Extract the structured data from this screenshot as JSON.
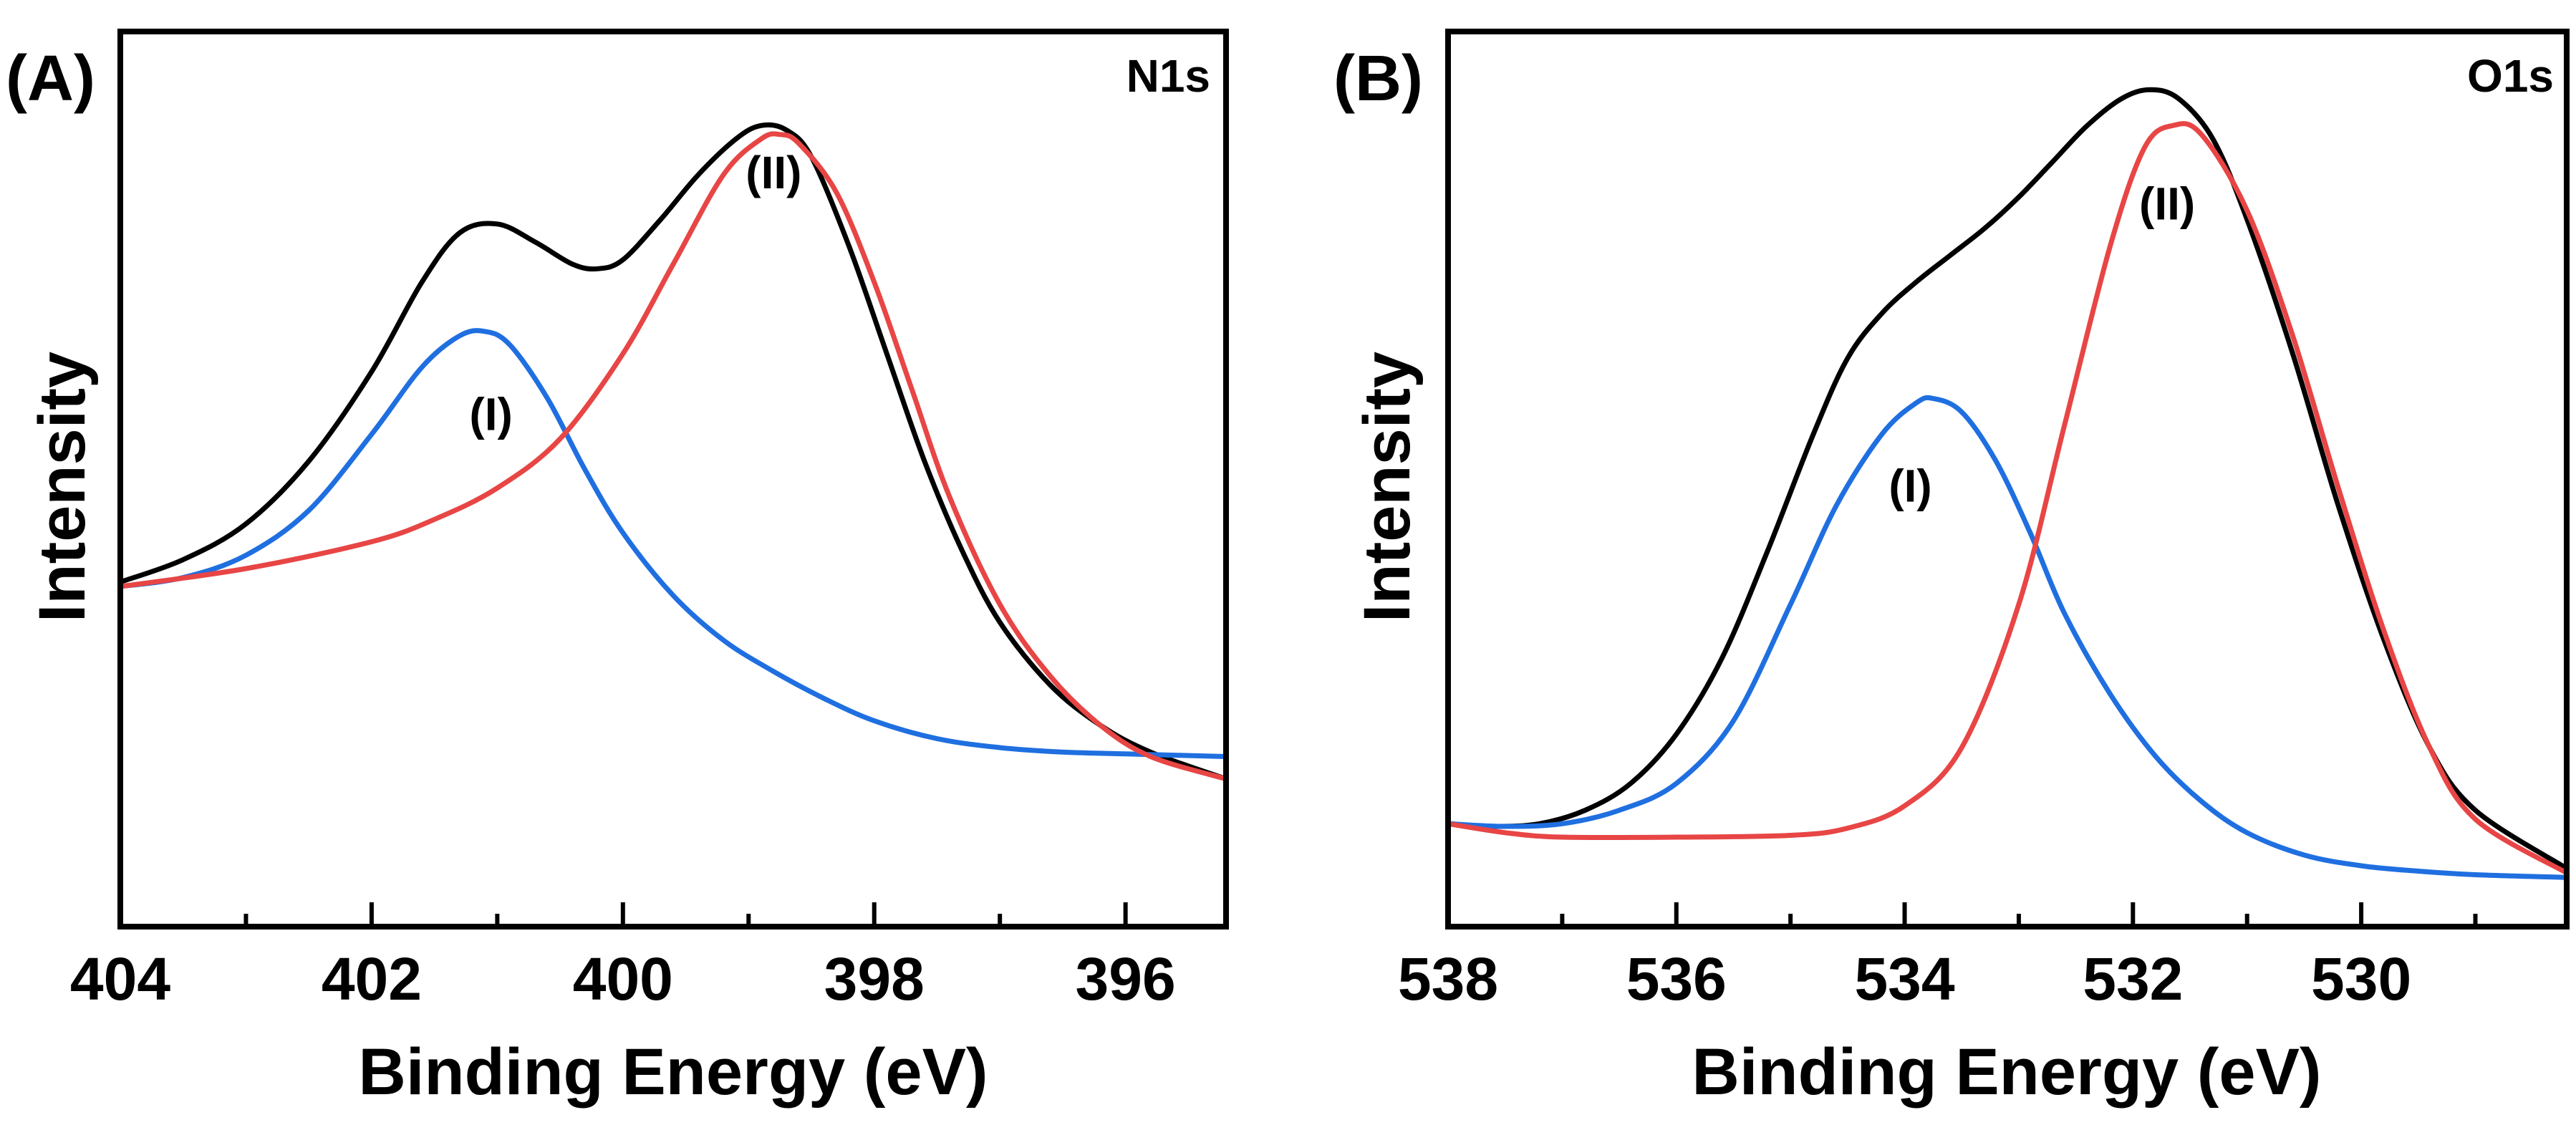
{
  "colors": {
    "envelope": "#000000",
    "peak_I": "#1f6fe0",
    "peak_II": "#e84545"
  },
  "chart_data": [
    {
      "type": "line",
      "panel_label": "(A)",
      "core_level": "N1s",
      "xlabel": "Binding Energy (eV)",
      "ylabel": "Intensity",
      "x_reversed": true,
      "xlim": [
        404.0,
        395.2
      ],
      "ylim": [
        0,
        1.0
      ],
      "x_ticks": [
        404,
        402,
        400,
        398,
        396
      ],
      "x_minor_ticks": [
        403,
        401,
        399,
        397
      ],
      "grid": false,
      "y_tick_labels": false,
      "series": [
        {
          "color": "#000000",
          "x": [
            404.0,
            403.5,
            403.0,
            402.5,
            402.0,
            401.6,
            401.3,
            401.0,
            400.7,
            400.4,
            400.2,
            400.0,
            399.7,
            399.4,
            399.1,
            398.9,
            398.7,
            398.5,
            398.2,
            397.9,
            397.6,
            397.3,
            397.0,
            396.6,
            396.2,
            395.8,
            395.2
          ],
          "y": [
            0.385,
            0.41,
            0.45,
            0.52,
            0.62,
            0.72,
            0.775,
            0.785,
            0.765,
            0.74,
            0.735,
            0.745,
            0.79,
            0.84,
            0.88,
            0.895,
            0.89,
            0.86,
            0.76,
            0.64,
            0.52,
            0.42,
            0.34,
            0.27,
            0.225,
            0.195,
            0.165
          ]
        },
        {
          "color": "#1f6fe0",
          "label": "(I)",
          "label_x": 401.05,
          "label_y": 0.555,
          "x": [
            404.0,
            403.5,
            403.0,
            402.5,
            402.0,
            401.6,
            401.3,
            401.1,
            400.9,
            400.6,
            400.3,
            400.0,
            399.6,
            399.2,
            398.8,
            398.4,
            398.0,
            397.5,
            397.0,
            396.5,
            396.0,
            395.2
          ],
          "y": [
            0.38,
            0.39,
            0.415,
            0.465,
            0.55,
            0.625,
            0.66,
            0.665,
            0.65,
            0.59,
            0.51,
            0.44,
            0.37,
            0.32,
            0.285,
            0.255,
            0.23,
            0.21,
            0.2,
            0.195,
            0.193,
            0.19
          ]
        },
        {
          "color": "#e84545",
          "label": "(II)",
          "label_x": 398.8,
          "label_y": 0.825,
          "x": [
            404.0,
            403.0,
            402.0,
            401.5,
            401.0,
            400.5,
            400.0,
            399.6,
            399.2,
            398.9,
            398.75,
            398.6,
            398.3,
            398.0,
            397.7,
            397.4,
            397.0,
            396.6,
            396.2,
            395.8,
            395.2
          ],
          "y": [
            0.38,
            0.4,
            0.43,
            0.455,
            0.49,
            0.545,
            0.64,
            0.74,
            0.84,
            0.88,
            0.885,
            0.875,
            0.82,
            0.72,
            0.6,
            0.48,
            0.36,
            0.28,
            0.225,
            0.19,
            0.165
          ]
        }
      ]
    },
    {
      "type": "line",
      "panel_label": "(B)",
      "core_level": "O1s",
      "xlabel": "Binding Energy (eV)",
      "ylabel": "Intensity",
      "x_reversed": true,
      "xlim": [
        538.0,
        528.2
      ],
      "ylim": [
        0,
        1.0
      ],
      "x_ticks": [
        538,
        536,
        534,
        532,
        530
      ],
      "x_minor_ticks": [
        537,
        535,
        533,
        531,
        529
      ],
      "grid": false,
      "y_tick_labels": false,
      "series": [
        {
          "color": "#000000",
          "x": [
            538.0,
            537.6,
            537.2,
            536.8,
            536.4,
            536.0,
            535.6,
            535.2,
            534.8,
            534.5,
            534.2,
            533.9,
            533.6,
            533.3,
            533.0,
            532.7,
            532.4,
            532.1,
            531.85,
            531.6,
            531.3,
            531.0,
            530.6,
            530.2,
            529.8,
            529.4,
            529.0,
            528.2
          ],
          "y": [
            0.115,
            0.112,
            0.115,
            0.13,
            0.16,
            0.215,
            0.3,
            0.42,
            0.55,
            0.635,
            0.685,
            0.72,
            0.75,
            0.78,
            0.815,
            0.855,
            0.895,
            0.925,
            0.935,
            0.925,
            0.88,
            0.79,
            0.64,
            0.47,
            0.32,
            0.2,
            0.13,
            0.065
          ]
        },
        {
          "color": "#1f6fe0",
          "label": "(I)",
          "label_x": 533.95,
          "label_y": 0.475,
          "x": [
            538.0,
            537.5,
            537.0,
            536.5,
            536.0,
            535.5,
            535.0,
            534.6,
            534.2,
            533.9,
            533.75,
            533.5,
            533.2,
            532.9,
            532.6,
            532.2,
            531.8,
            531.4,
            531.0,
            530.5,
            530.0,
            529.5,
            529.0,
            528.2
          ],
          "y": [
            0.115,
            0.112,
            0.115,
            0.13,
            0.16,
            0.23,
            0.36,
            0.47,
            0.55,
            0.585,
            0.59,
            0.575,
            0.52,
            0.44,
            0.35,
            0.26,
            0.19,
            0.14,
            0.105,
            0.08,
            0.068,
            0.062,
            0.058,
            0.055
          ]
        },
        {
          "color": "#e84545",
          "label": "(II)",
          "label_x": 531.7,
          "label_y": 0.79,
          "x": [
            538.0,
            537.5,
            537.0,
            536.0,
            535.0,
            534.5,
            534.0,
            533.5,
            533.0,
            532.6,
            532.2,
            531.9,
            531.65,
            531.4,
            531.0,
            530.6,
            530.2,
            529.8,
            529.4,
            529.0,
            528.2
          ],
          "y": [
            0.115,
            0.105,
            0.1,
            0.1,
            0.102,
            0.11,
            0.135,
            0.2,
            0.36,
            0.56,
            0.76,
            0.87,
            0.895,
            0.885,
            0.8,
            0.66,
            0.49,
            0.33,
            0.2,
            0.12,
            0.06
          ]
        }
      ]
    }
  ]
}
